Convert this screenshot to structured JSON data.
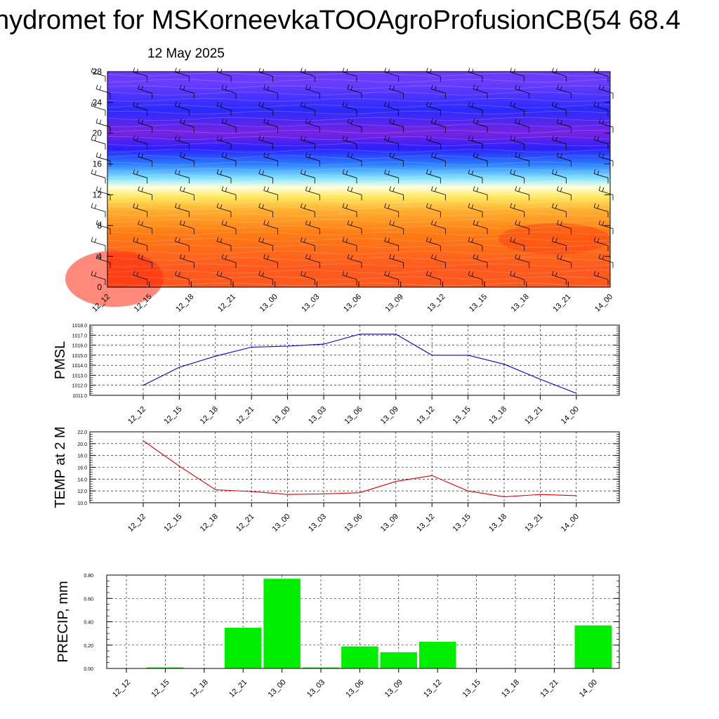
{
  "page": {
    "title": "hydromet for MSKorneevkaTOOAgroProfusionCB(54 68.4",
    "subtitle": "12 May 2025"
  },
  "chart_data": [
    {
      "type": "heatmap",
      "ylim": [
        0,
        28
      ],
      "yticks": [
        "0",
        "4",
        "8",
        "12",
        "16",
        "20",
        "24",
        "28"
      ],
      "categories": [
        "12_12",
        "12_15",
        "12_18",
        "12_21",
        "13_00",
        "13_03",
        "13_06",
        "13_09",
        "13_12",
        "13_15",
        "13_18",
        "13_21",
        "14_00"
      ],
      "grid": false,
      "color_bands": [
        {
          "from": 0,
          "to": 5,
          "color": "#ff5a1e"
        },
        {
          "from": 5,
          "to": 9,
          "color": "#ff7c14"
        },
        {
          "from": 9,
          "to": 11,
          "color": "#ffb030"
        },
        {
          "from": 11,
          "to": 12.5,
          "color": "#ffe860"
        },
        {
          "from": 12.5,
          "to": 13.5,
          "color": "#ffffe0"
        },
        {
          "from": 13.5,
          "to": 15,
          "color": "#7ee0ff"
        },
        {
          "from": 15,
          "to": 17,
          "color": "#2a7dff"
        },
        {
          "from": 17,
          "to": 19,
          "color": "#2a1fff"
        },
        {
          "from": 19,
          "to": 21,
          "color": "#7a22e0"
        },
        {
          "from": 21,
          "to": 25,
          "color": "#2a2aff"
        },
        {
          "from": 25,
          "to": 28,
          "color": "#6a3cff"
        }
      ]
    },
    {
      "type": "line",
      "ylabel": "PMSL",
      "categories": [
        "12_12",
        "12_15",
        "12_18",
        "12_21",
        "13_00",
        "13_03",
        "13_06",
        "13_09",
        "13_12",
        "13_15",
        "13_18",
        "13_21",
        "14_00"
      ],
      "ylim": [
        1011,
        1018
      ],
      "yticks": [
        "1011.0",
        "1012.0",
        "1013.0",
        "1014.0",
        "1015.0",
        "1016.0",
        "1017.0",
        "1018.0"
      ],
      "series": [
        {
          "values": [
            1012.0,
            1013.8,
            1014.9,
            1015.8,
            1015.9,
            1016.1,
            1017.1,
            1017.1,
            1015.0,
            1015.0,
            1014.1,
            1012.6,
            1011.2
          ],
          "color": "#0000cc"
        }
      ],
      "grid": true
    },
    {
      "type": "line",
      "ylabel": "TEMP at 2 M",
      "categories": [
        "12_12",
        "12_15",
        "12_18",
        "12_21",
        "13_00",
        "13_03",
        "13_06",
        "13_09",
        "13_12",
        "13_15",
        "13_18",
        "13_21",
        "14_00"
      ],
      "ylim": [
        10,
        22
      ],
      "yticks": [
        "10.0",
        "12.0",
        "14.0",
        "16.0",
        "18.0",
        "20.0",
        "22.0"
      ],
      "series": [
        {
          "values": [
            20.5,
            16.2,
            12.2,
            11.9,
            11.4,
            11.5,
            11.7,
            13.6,
            14.6,
            12.0,
            11.0,
            11.4,
            11.2
          ],
          "color": "#dd0000"
        }
      ],
      "grid": true
    },
    {
      "type": "bar",
      "ylabel": "PRECIP, mm",
      "categories": [
        "12_12",
        "12_15",
        "12_18",
        "12_21",
        "13_00",
        "13_03",
        "13_06",
        "13_09",
        "13_12",
        "13_15",
        "13_18",
        "13_21",
        "14_00"
      ],
      "ylim": [
        0,
        0.8
      ],
      "yticks": [
        "0.00",
        "0.20",
        "0.40",
        "0.60",
        "0.80"
      ],
      "values": [
        0,
        0.01,
        0,
        0.35,
        0.77,
        0.01,
        0.19,
        0.14,
        0.23,
        0,
        0,
        0,
        0.37
      ],
      "color": "#00ee00",
      "grid": true
    }
  ]
}
